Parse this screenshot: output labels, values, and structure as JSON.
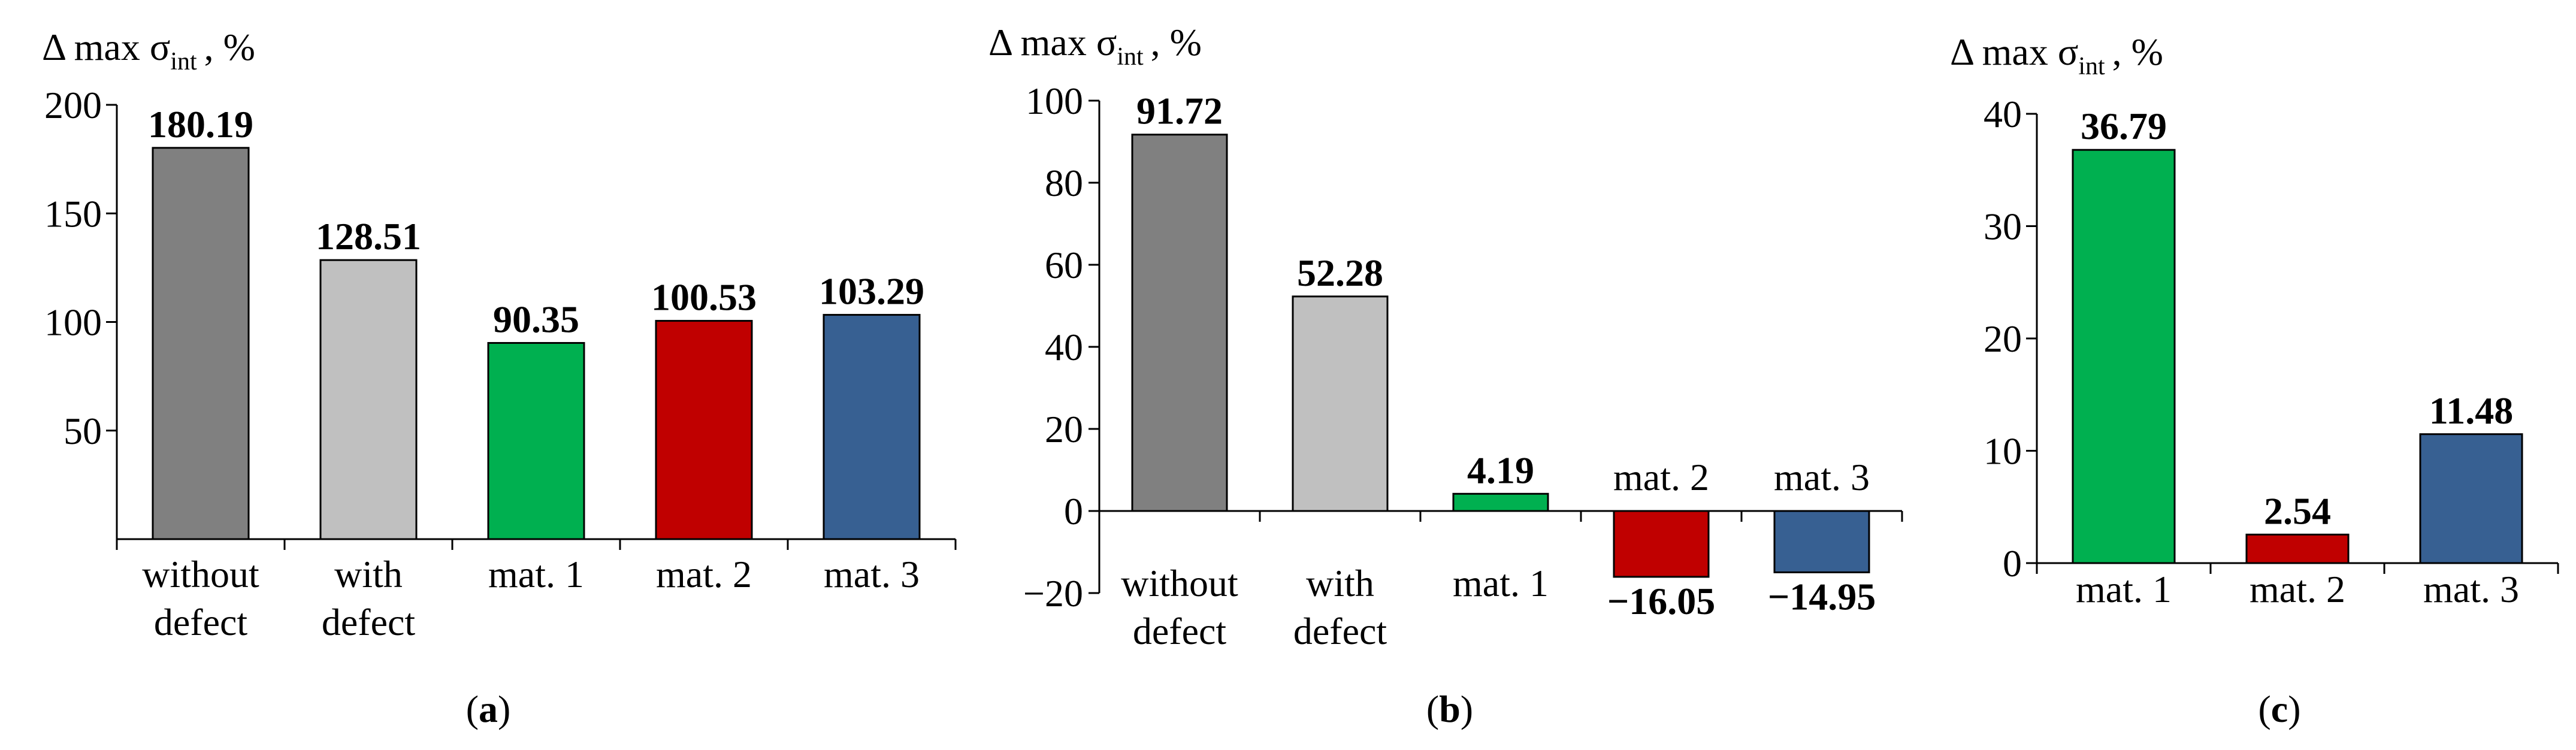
{
  "figure": {
    "captions": [
      "(a)",
      "(b)",
      "(c)"
    ]
  },
  "chart_data": [
    {
      "type": "bar",
      "panel": "a",
      "ylabel": "Δ max σint , %",
      "ylabel_parts": {
        "prefix": "Δ max σ",
        "sub": "int",
        "suffix": ", %"
      },
      "categories": [
        [
          "without",
          "defect"
        ],
        [
          "with",
          "defect"
        ],
        [
          "mat. 1"
        ],
        [
          "mat. 2"
        ],
        [
          "mat. 3"
        ]
      ],
      "values": [
        180.19,
        128.51,
        90.35,
        100.53,
        103.29
      ],
      "value_labels": [
        "180.19",
        "128.51",
        "90.35",
        "100.53",
        "103.29"
      ],
      "colors": [
        "#808080",
        "#c0c0c0",
        "#00b050",
        "#c00000",
        "#376092"
      ],
      "yticks": [
        50,
        100,
        150,
        200
      ],
      "ylim": [
        0,
        200
      ],
      "caption_letter": "a"
    },
    {
      "type": "bar",
      "panel": "b",
      "ylabel": "Δ max σint , %",
      "ylabel_parts": {
        "prefix": "Δ max σ",
        "sub": "int",
        "suffix": ", %"
      },
      "categories": [
        [
          "without",
          "defect"
        ],
        [
          "with",
          "defect"
        ],
        [
          "mat. 1"
        ],
        [
          "mat. 2"
        ],
        [
          "mat. 3"
        ]
      ],
      "values": [
        91.72,
        52.28,
        4.19,
        -16.05,
        -14.95
      ],
      "value_labels": [
        "91.72",
        "52.28",
        "4.19",
        "−16.05",
        "−14.95"
      ],
      "colors": [
        "#808080",
        "#c0c0c0",
        "#00b050",
        "#c00000",
        "#376092"
      ],
      "yticks": [
        -20,
        0,
        20,
        40,
        60,
        80,
        100
      ],
      "ytick_labels": [
        "−20",
        "0",
        "20",
        "40",
        "60",
        "80",
        "100"
      ],
      "ylim": [
        -20,
        100
      ],
      "caption_letter": "b"
    },
    {
      "type": "bar",
      "panel": "c",
      "ylabel": "Δ max σint , %",
      "ylabel_parts": {
        "prefix": "Δ max σ",
        "sub": "int",
        "suffix": ", %"
      },
      "categories": [
        [
          "mat. 1"
        ],
        [
          "mat. 2"
        ],
        [
          "mat. 3"
        ]
      ],
      "values": [
        36.79,
        2.54,
        11.48
      ],
      "value_labels": [
        "36.79",
        "2.54",
        "11.48"
      ],
      "colors": [
        "#00b050",
        "#c00000",
        "#376092"
      ],
      "yticks": [
        0,
        10,
        20,
        30,
        40
      ],
      "ylim": [
        0,
        40
      ],
      "caption_letter": "c"
    }
  ]
}
